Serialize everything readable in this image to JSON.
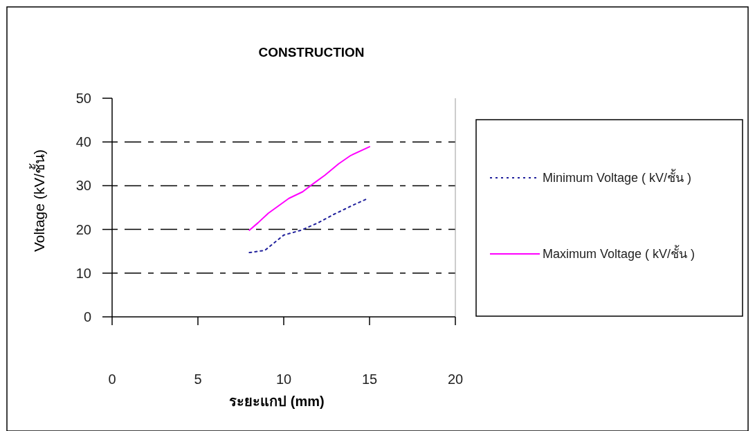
{
  "chart_data": {
    "type": "line",
    "title": "CONSTRUCTION",
    "xlabel": "ระยะแกป (mm)",
    "ylabel": "Voltage (kV/ชั้น)",
    "xlim": [
      0,
      20
    ],
    "xticks": [
      0,
      5,
      10,
      15,
      20
    ],
    "ylim": [
      0,
      50
    ],
    "yticks": [
      0,
      10,
      20,
      30,
      40,
      50
    ],
    "grid": "y",
    "legend": "right",
    "marker": "none",
    "series": [
      {
        "name": "Minimum Voltage ( kV/ชั้น )",
        "color": "#1f1f9c",
        "line_style": "dotted",
        "x": [
          8,
          8.9,
          10,
          11,
          12,
          12.9,
          13.9,
          14.8
        ],
        "values": [
          14.7,
          15.2,
          18.7,
          19.8,
          21.5,
          23.4,
          25.3,
          26.9
        ]
      },
      {
        "name": "Maximum Voltage ( kV/ชั้น )",
        "color": "#ff00ff",
        "line_style": "solid",
        "x": [
          8,
          8.5,
          9.1,
          10.3,
          11.1,
          11.7,
          12.4,
          13.2,
          13.9,
          15
        ],
        "values": [
          19.8,
          21.5,
          23.7,
          27.1,
          28.6,
          30.4,
          32.4,
          35,
          36.9,
          38.9
        ]
      }
    ]
  }
}
